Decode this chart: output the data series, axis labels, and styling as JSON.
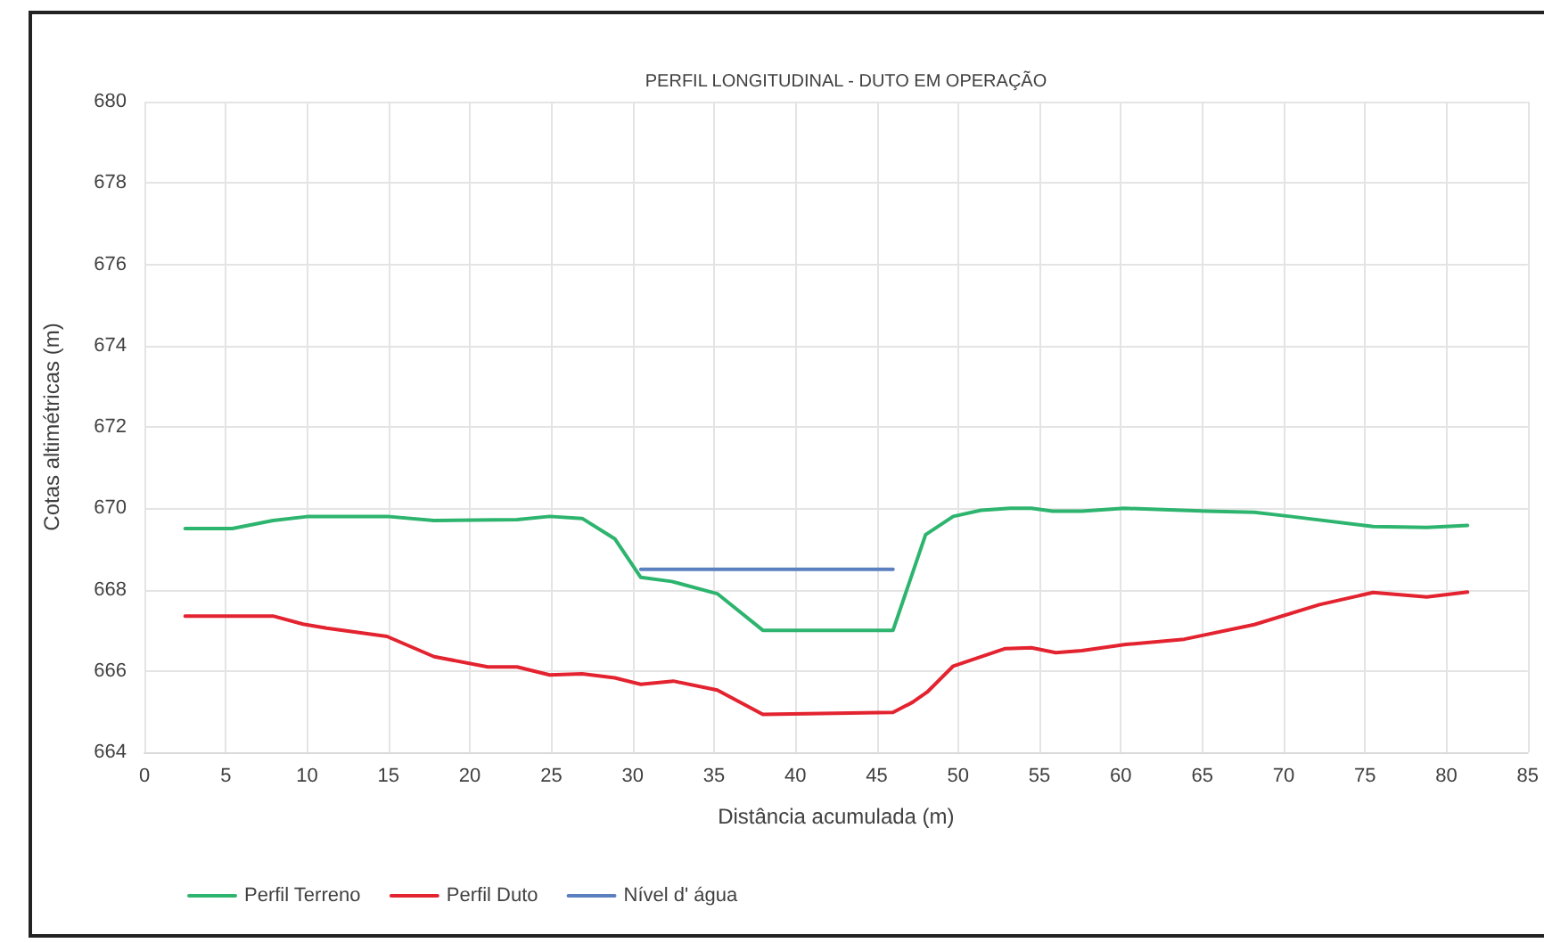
{
  "chart_data": {
    "type": "line",
    "title": "PERFIL LONGITUDINAL - DUTO EM OPERAÇÃO",
    "xlabel": "Distância acumulada (m)",
    "ylabel": "Cotas altimétricas (m)",
    "series": [
      {
        "name": "Perfil Terreno",
        "color": "#2db46e",
        "x": [
          2.5,
          5.4,
          7.9,
          10.1,
          14.9,
          17.8,
          22.9,
          24.9,
          26.9,
          28.9,
          30.5,
          32.4,
          35.2,
          38,
          46,
          48,
          49.7,
          51.4,
          53.2,
          54.5,
          55.8,
          57.6,
          60.2,
          65.3,
          68.2,
          70.4,
          75.5,
          78.8,
          81.3
        ],
        "values": [
          669.5,
          669.5,
          669.7,
          669.8,
          669.8,
          669.7,
          669.72,
          669.8,
          669.75,
          669.25,
          668.3,
          668.2,
          667.9,
          667.0,
          667.0,
          669.35,
          669.8,
          669.95,
          670.0,
          670.0,
          669.93,
          669.93,
          670.0,
          669.93,
          669.9,
          669.8,
          669.55,
          669.53,
          669.58
        ]
      },
      {
        "name": "Perfil Duto",
        "color": "#e3232f",
        "x": [
          2.5,
          7.9,
          9.75,
          11.2,
          14.9,
          17.8,
          21.1,
          22.9,
          24.9,
          26.9,
          28.9,
          30.5,
          32.5,
          35.2,
          38,
          46,
          47.2,
          48.1,
          49.7,
          51.4,
          52.9,
          54.5,
          56,
          57.6,
          60.3,
          63.9,
          68.2,
          72.2,
          75.5,
          78.8,
          81.3
        ],
        "values": [
          667.35,
          667.35,
          667.15,
          667.05,
          666.85,
          666.35,
          666.1,
          666.1,
          665.9,
          665.93,
          665.83,
          665.67,
          665.75,
          665.53,
          664.93,
          664.98,
          665.23,
          665.48,
          666.12,
          666.35,
          666.55,
          666.57,
          666.45,
          666.5,
          666.65,
          666.78,
          667.14,
          667.63,
          667.93,
          667.82,
          667.94
        ]
      },
      {
        "name": "Nível d' água",
        "color": "#5b80c0",
        "x": [
          30.5,
          46
        ],
        "values": [
          668.5,
          668.5
        ]
      }
    ],
    "xlim": [
      0,
      85
    ],
    "xticks": [
      0,
      5,
      10,
      15,
      20,
      25,
      30,
      35,
      40,
      45,
      50,
      55,
      60,
      65,
      70,
      75,
      80,
      85
    ],
    "ylim": [
      664,
      680
    ],
    "yticks": [
      664,
      666,
      668,
      670,
      672,
      674,
      676,
      678,
      680
    ],
    "grid": true,
    "legend": "bottom left",
    "marker": "none"
  }
}
